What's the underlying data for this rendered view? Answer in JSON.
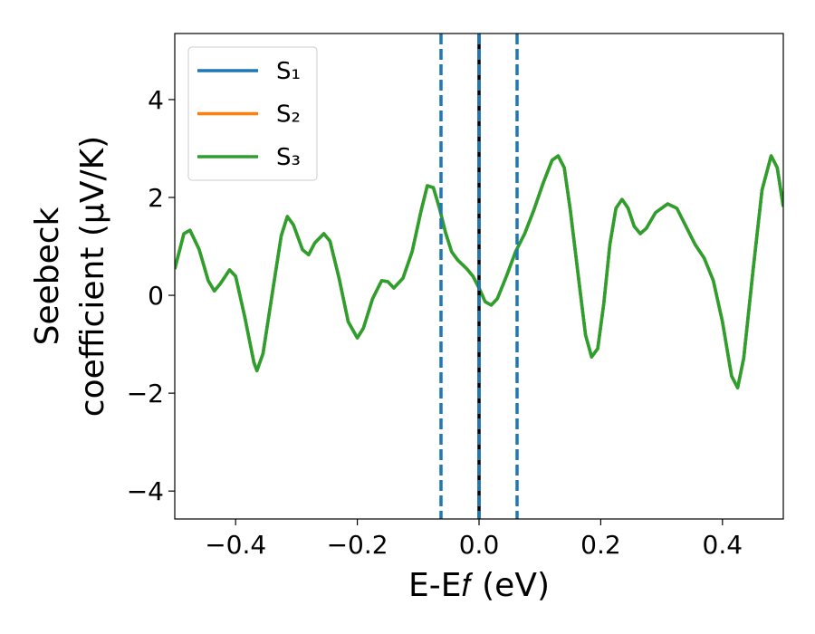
{
  "chart_data": {
    "type": "line",
    "xlabel": "E-E𝑓 (eV)",
    "ylabel": [
      "Seebeck",
      "coefficient  (μV/K)"
    ],
    "xlim": [
      -0.5,
      0.5
    ],
    "ylim": [
      -4.57,
      5.35
    ],
    "xticks": [
      {
        "value": -0.4,
        "label": "−0.4"
      },
      {
        "value": -0.2,
        "label": "−0.2"
      },
      {
        "value": 0,
        "label": "0.0"
      },
      {
        "value": 0.2,
        "label": "0.2"
      },
      {
        "value": 0.4,
        "label": "0.4"
      }
    ],
    "yticks": [
      {
        "value": -4,
        "label": "−4"
      },
      {
        "value": -2,
        "label": "−2"
      },
      0,
      2,
      4
    ],
    "legend": "upper left",
    "vlines": [
      {
        "x": -0.0625,
        "color": "#1f77b4",
        "style": "dashed"
      },
      {
        "x": 0,
        "color": "#000000",
        "style": "solid"
      },
      {
        "x": 0,
        "color": "#1f77b4",
        "style": "dashed"
      },
      {
        "x": 0.0625,
        "color": "#1f77b4",
        "style": "dashed"
      }
    ],
    "x": [
      -0.5,
      -0.485,
      -0.475,
      -0.46,
      -0.445,
      -0.435,
      -0.425,
      -0.41,
      -0.4,
      -0.385,
      -0.37,
      -0.365,
      -0.355,
      -0.34,
      -0.325,
      -0.315,
      -0.305,
      -0.29,
      -0.28,
      -0.27,
      -0.255,
      -0.245,
      -0.23,
      -0.215,
      -0.2,
      -0.19,
      -0.175,
      -0.16,
      -0.15,
      -0.14,
      -0.125,
      -0.11,
      -0.095,
      -0.085,
      -0.075,
      -0.065,
      -0.055,
      -0.045,
      -0.035,
      -0.02,
      -0.01,
      0,
      0.01,
      0.02,
      0.03,
      0.045,
      0.06,
      0.075,
      0.09,
      0.105,
      0.12,
      0.13,
      0.14,
      0.15,
      0.165,
      0.175,
      0.185,
      0.195,
      0.205,
      0.215,
      0.225,
      0.235,
      0.245,
      0.255,
      0.265,
      0.275,
      0.29,
      0.31,
      0.325,
      0.34,
      0.355,
      0.37,
      0.385,
      0.4,
      0.415,
      0.425,
      0.435,
      0.45,
      0.465,
      0.48,
      0.49,
      0.5
    ],
    "series": [
      {
        "name": "S₁",
        "color": "#1f77b4",
        "values": [
          0.54,
          1.26,
          1.33,
          0.94,
          0.3,
          0.09,
          0.24,
          0.52,
          0.39,
          -0.44,
          -1.37,
          -1.54,
          -1.19,
          0.02,
          1.22,
          1.61,
          1.44,
          0.93,
          0.83,
          1.07,
          1.26,
          1.11,
          0.35,
          -0.54,
          -0.87,
          -0.67,
          -0.07,
          0.3,
          0.28,
          0.15,
          0.35,
          0.89,
          1.74,
          2.24,
          2.2,
          1.78,
          1.28,
          0.89,
          0.72,
          0.54,
          0.39,
          0.15,
          -0.13,
          -0.2,
          -0.07,
          0.39,
          0.89,
          1.26,
          1.74,
          2.28,
          2.76,
          2.85,
          2.61,
          1.74,
          0.2,
          -0.81,
          -1.26,
          -1.09,
          -0.17,
          1.04,
          1.78,
          1.96,
          1.78,
          1.41,
          1.26,
          1.37,
          1.69,
          1.87,
          1.78,
          1.41,
          1.04,
          0.76,
          0.3,
          -0.54,
          -1.65,
          -1.89,
          -1.28,
          0.48,
          2.15,
          2.85,
          2.61,
          1.81
        ]
      },
      {
        "name": "S₂",
        "color": "#ff7f0e",
        "values": [
          0.54,
          1.26,
          1.33,
          0.94,
          0.3,
          0.09,
          0.24,
          0.52,
          0.39,
          -0.44,
          -1.37,
          -1.54,
          -1.19,
          0.02,
          1.22,
          1.61,
          1.44,
          0.93,
          0.83,
          1.07,
          1.26,
          1.11,
          0.35,
          -0.54,
          -0.87,
          -0.67,
          -0.07,
          0.3,
          0.28,
          0.15,
          0.35,
          0.89,
          1.74,
          2.24,
          2.2,
          1.78,
          1.28,
          0.89,
          0.72,
          0.54,
          0.39,
          0.15,
          -0.13,
          -0.2,
          -0.07,
          0.39,
          0.89,
          1.26,
          1.74,
          2.28,
          2.76,
          2.85,
          2.61,
          1.74,
          0.2,
          -0.81,
          -1.26,
          -1.09,
          -0.17,
          1.04,
          1.78,
          1.96,
          1.78,
          1.41,
          1.26,
          1.37,
          1.69,
          1.87,
          1.78,
          1.41,
          1.04,
          0.76,
          0.3,
          -0.54,
          -1.65,
          -1.89,
          -1.28,
          0.48,
          2.15,
          2.85,
          2.61,
          1.81
        ]
      },
      {
        "name": "S₃",
        "color": "#2ca02c",
        "values": [
          0.54,
          1.26,
          1.33,
          0.94,
          0.3,
          0.09,
          0.24,
          0.52,
          0.39,
          -0.44,
          -1.37,
          -1.54,
          -1.19,
          0.02,
          1.22,
          1.61,
          1.44,
          0.93,
          0.83,
          1.07,
          1.26,
          1.11,
          0.35,
          -0.54,
          -0.87,
          -0.67,
          -0.07,
          0.3,
          0.28,
          0.15,
          0.35,
          0.89,
          1.74,
          2.24,
          2.2,
          1.78,
          1.28,
          0.89,
          0.72,
          0.54,
          0.39,
          0.15,
          -0.13,
          -0.2,
          -0.07,
          0.39,
          0.89,
          1.26,
          1.74,
          2.28,
          2.76,
          2.85,
          2.61,
          1.74,
          0.2,
          -0.81,
          -1.26,
          -1.09,
          -0.17,
          1.04,
          1.78,
          1.96,
          1.78,
          1.41,
          1.26,
          1.37,
          1.69,
          1.87,
          1.78,
          1.41,
          1.04,
          0.76,
          0.3,
          -0.54,
          -1.65,
          -1.89,
          -1.28,
          0.48,
          2.15,
          2.85,
          2.61,
          1.81
        ]
      }
    ]
  }
}
